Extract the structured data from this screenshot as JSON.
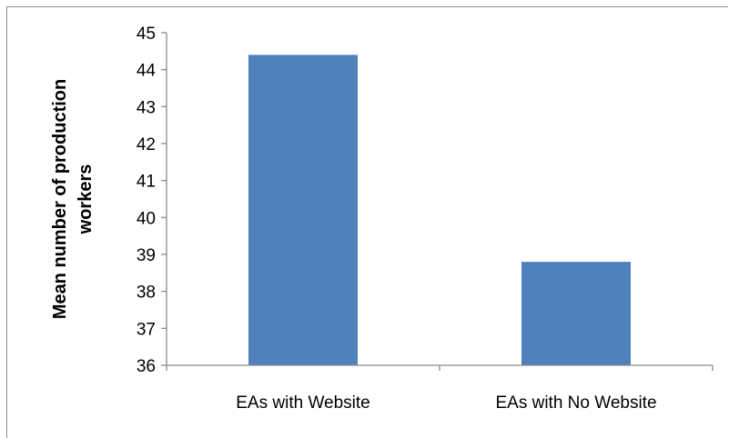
{
  "chart_data": {
    "type": "bar",
    "categories": [
      "EAs with Website",
      "EAs with No Website"
    ],
    "values": [
      44.4,
      38.8
    ],
    "title": "",
    "xlabel": "",
    "ylabel_lines": [
      "Mean number of production",
      "workers"
    ],
    "ylim": [
      36,
      45
    ],
    "yticks": [
      "36",
      "37",
      "38",
      "39",
      "40",
      "41",
      "42",
      "43",
      "44",
      "45"
    ],
    "grid": false,
    "legend": "none",
    "bar_color": "#4f81bd",
    "axis_color": "#8c8c8c"
  }
}
